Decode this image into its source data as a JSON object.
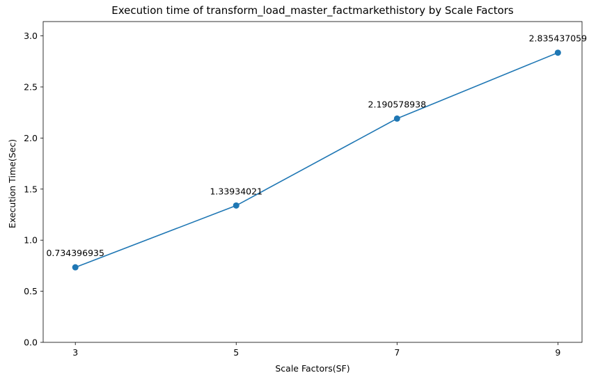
{
  "chart_data": {
    "type": "line",
    "title": "Execution time of transform_load_master_factmarkethistory by Scale Factors",
    "xlabel": "Scale Factors(SF)",
    "ylabel": "Execution Time(Sec)",
    "x": [
      3,
      5,
      7,
      9
    ],
    "series": [
      {
        "values": [
          0.734396935,
          1.33934021,
          2.190578938,
          2.835437059
        ],
        "labels": [
          "0.734396935",
          "1.33934021",
          "2.190578938",
          "2.835437059"
        ],
        "color": "#1f77b4",
        "marker": "circle"
      }
    ],
    "xlim": [
      2.6,
      9.3
    ],
    "ylim": [
      0,
      3.14
    ],
    "xticks": [
      "3",
      "5",
      "7",
      "9"
    ],
    "yticks": [
      "0.0",
      "0.5",
      "1.0",
      "1.5",
      "2.0",
      "2.5",
      "3.0"
    ],
    "grid": false,
    "legend": false
  }
}
